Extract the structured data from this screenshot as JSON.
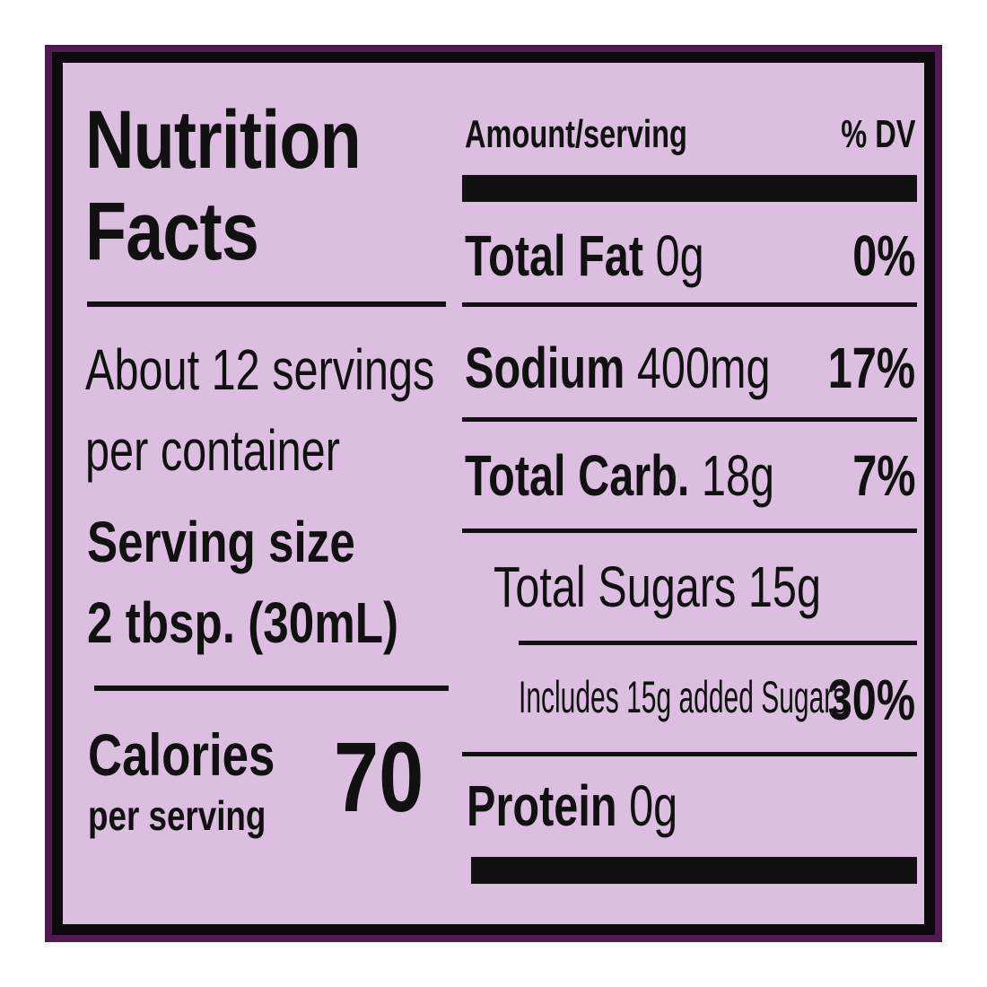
{
  "title_line1": "Nutrition",
  "title_line2": "Facts",
  "servings_line1": "About 12 servings",
  "servings_line2": "per container",
  "serving_size_label": "Serving size",
  "serving_size_value": "2 tbsp. (30mL)",
  "calories_label": "Calories",
  "calories_sub": "per serving",
  "calories_value": "70",
  "header": {
    "amount": "Amount/serving",
    "dv": "% DV"
  },
  "rows": [
    {
      "name": "Total Fat",
      "amount": "0g",
      "dv": "0%"
    },
    {
      "name": "Sodium",
      "amount": "400mg",
      "dv": "17%"
    },
    {
      "name": "Total Carb.",
      "amount": "18g",
      "dv": "7%"
    },
    {
      "name": "Total Sugars 15g",
      "amount": "",
      "dv": ""
    },
    {
      "name": "Includes 15g added Sugars",
      "amount": "",
      "dv": "30%"
    },
    {
      "name": "Protein",
      "amount": "0g",
      "dv": ""
    }
  ],
  "colors": {
    "frame": "#4e1a50",
    "background": "#dcbfe0",
    "ink": "#111111"
  }
}
